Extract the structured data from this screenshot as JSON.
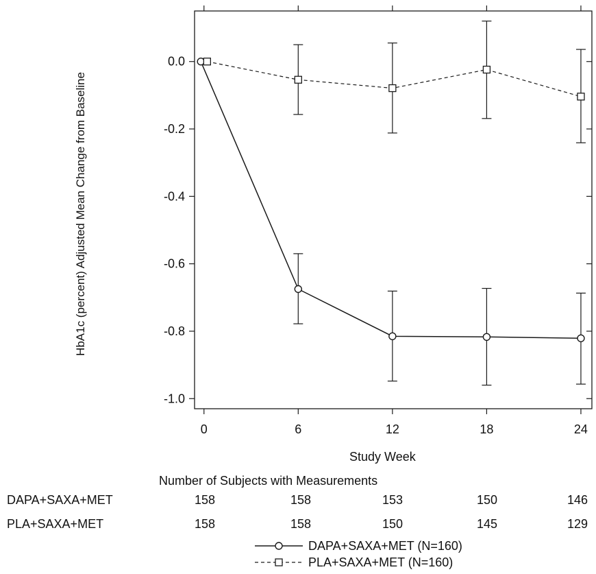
{
  "chart_data": {
    "type": "line",
    "ylabel": "HbA1c (percent) Adjusted Mean Change from Baseline",
    "xlabel": "Study Week",
    "x_ticks": [
      0,
      6,
      12,
      18,
      24
    ],
    "xlim": [
      -0.6,
      24.7
    ],
    "ylim": [
      -1.03,
      0.15
    ],
    "y_ticks": [
      0.0,
      -0.2,
      -0.4,
      -0.6,
      -0.8,
      -1.0
    ],
    "y_tick_labels": [
      "0.0",
      "-0.2",
      "-0.4",
      "-0.6",
      "-0.8",
      "-1.0"
    ],
    "grid": false,
    "legend_position": "bottom",
    "series": [
      {
        "name": "DAPA+SAXA+MET (N=160)",
        "marker": "circle",
        "line_style": "solid",
        "x": [
          -0.2,
          6,
          12,
          18,
          24
        ],
        "y": [
          0.0,
          -0.675,
          -0.815,
          -0.817,
          -0.821
        ],
        "err_low": [
          null,
          -0.778,
          -0.948,
          -0.96,
          -0.957
        ],
        "err_high": [
          null,
          -0.57,
          -0.681,
          -0.673,
          -0.687
        ]
      },
      {
        "name": "PLA+SAXA+MET (N=160)",
        "marker": "square",
        "line_style": "dashed",
        "x": [
          0.2,
          6,
          12,
          18,
          24
        ],
        "y": [
          0.0,
          -0.054,
          -0.079,
          -0.024,
          -0.104
        ],
        "err_low": [
          null,
          -0.157,
          -0.212,
          -0.169,
          -0.241
        ],
        "err_high": [
          null,
          0.05,
          0.055,
          0.12,
          0.036
        ]
      }
    ],
    "subjects_table": {
      "title": "Number of Subjects with Measurements",
      "rows": [
        {
          "label": "DAPA+SAXA+MET",
          "counts": [
            "158",
            "158",
            "153",
            "150",
            "146"
          ]
        },
        {
          "label": "PLA+SAXA+MET",
          "counts": [
            "158",
            "158",
            "150",
            "145",
            "129"
          ]
        }
      ]
    }
  }
}
